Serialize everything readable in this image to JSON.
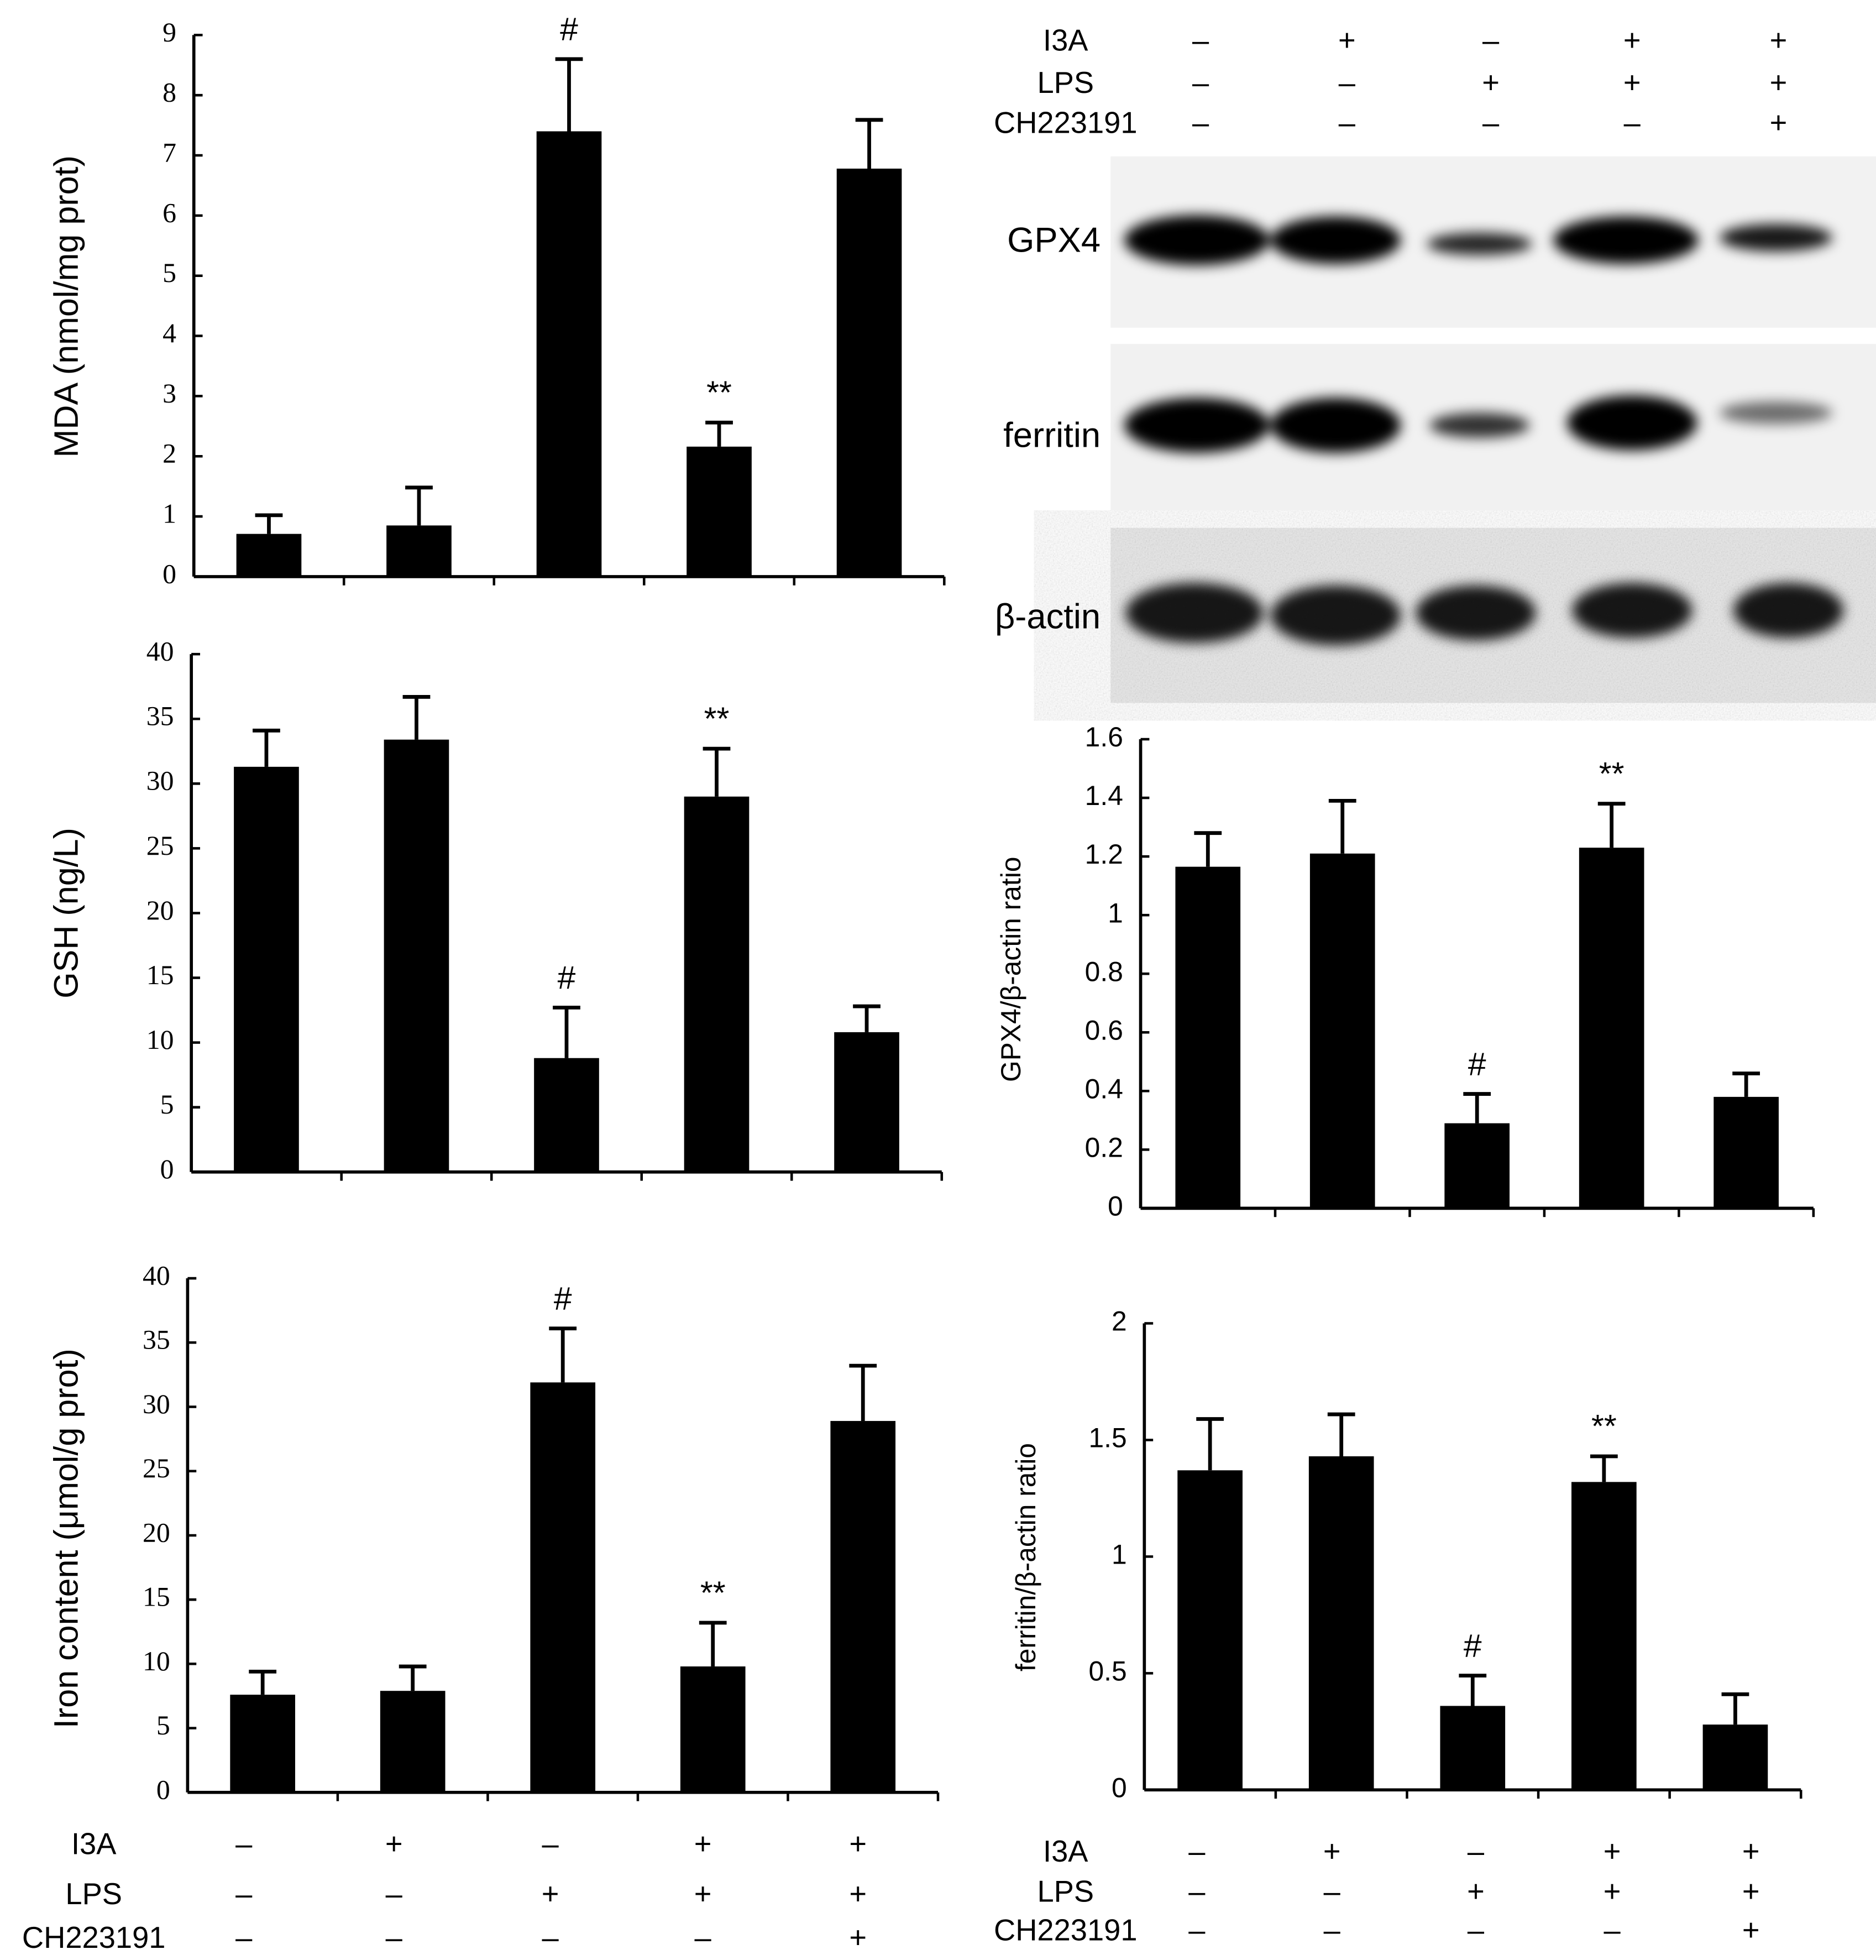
{
  "chart_data": [
    {
      "type": "bar",
      "y_label": "MDA (nmol/mg prot)",
      "color": "#000000",
      "values": [
        0.71,
        0.85,
        7.4,
        2.16,
        6.78
      ],
      "errors": [
        0.31,
        0.63,
        1.2,
        0.4,
        0.81
      ],
      "annotations": [
        null,
        null,
        "#",
        "**",
        null
      ],
      "ylim": [
        0,
        9
      ],
      "yticks": [
        0,
        1,
        2,
        3,
        4,
        5,
        6,
        7,
        8,
        9
      ]
    },
    {
      "type": "bar",
      "y_label": "GSH (ng/L)",
      "color": "#000000",
      "values": [
        31.3,
        33.4,
        8.8,
        29.0,
        10.8
      ],
      "errors": [
        2.8,
        3.3,
        3.9,
        3.7,
        2.0
      ],
      "annotations": [
        null,
        null,
        "#",
        "**",
        null
      ],
      "ylim": [
        0,
        40
      ],
      "yticks": [
        0,
        5,
        10,
        15,
        20,
        25,
        30,
        35,
        40
      ]
    },
    {
      "type": "bar",
      "y_label": "Iron content (μmol/g prot)",
      "color": "#000000",
      "values": [
        7.6,
        7.9,
        31.9,
        9.8,
        28.9
      ],
      "errors": [
        1.8,
        1.9,
        4.2,
        3.4,
        4.3
      ],
      "annotations": [
        null,
        null,
        "#",
        "**",
        null
      ],
      "ylim": [
        0,
        40
      ],
      "yticks": [
        0,
        5,
        10,
        15,
        20,
        25,
        30,
        35,
        40
      ]
    },
    {
      "type": "bar",
      "y_label": "GPX4/β-actin ratio",
      "color": "#000000",
      "values": [
        1.165,
        1.21,
        0.29,
        1.23,
        0.38
      ],
      "errors": [
        0.115,
        0.18,
        0.1,
        0.15,
        0.08
      ],
      "annotations": [
        null,
        null,
        "#",
        "**",
        null
      ],
      "ylim": [
        0,
        1.6
      ],
      "yticks": [
        0,
        0.2,
        0.4,
        0.6,
        0.8,
        1,
        1.2,
        1.4,
        1.6
      ]
    },
    {
      "type": "bar",
      "y_label": "ferritin/β-actin ratio",
      "color": "#000000",
      "values": [
        1.37,
        1.43,
        0.36,
        1.32,
        0.28
      ],
      "errors": [
        0.22,
        0.18,
        0.13,
        0.11,
        0.13
      ],
      "annotations": [
        null,
        null,
        "#",
        "**",
        null
      ],
      "ylim": [
        0,
        2
      ],
      "yticks": [
        0,
        0.5,
        1,
        1.5,
        2
      ]
    }
  ],
  "treatment_tables": [
    {
      "rows": [
        {
          "label": "I3A",
          "signs": [
            "–",
            "+",
            "–",
            "+",
            "+"
          ]
        },
        {
          "label": "LPS",
          "signs": [
            "–",
            "–",
            "+",
            "+",
            "+"
          ]
        },
        {
          "label": "CH223191",
          "signs": [
            "–",
            "–",
            "–",
            "–",
            "+"
          ]
        }
      ]
    },
    {
      "rows": [
        {
          "label": "I3A",
          "signs": [
            "–",
            "+",
            "–",
            "+",
            "+"
          ]
        },
        {
          "label": "LPS",
          "signs": [
            "–",
            "–",
            "+",
            "+",
            "+"
          ]
        },
        {
          "label": "CH223191",
          "signs": [
            "–",
            "–",
            "–",
            "–",
            "+"
          ]
        }
      ]
    },
    {
      "rows": [
        {
          "label": "I3A",
          "signs": [
            "–",
            "+",
            "–",
            "+",
            "+"
          ]
        },
        {
          "label": "LPS",
          "signs": [
            "–",
            "–",
            "+",
            "+",
            "+"
          ]
        },
        {
          "label": "CH223191",
          "signs": [
            "–",
            "–",
            "–",
            "–",
            "+"
          ]
        }
      ]
    }
  ],
  "blot": {
    "labels": [
      "GPX4",
      "ferritin",
      "β-actin"
    ]
  }
}
